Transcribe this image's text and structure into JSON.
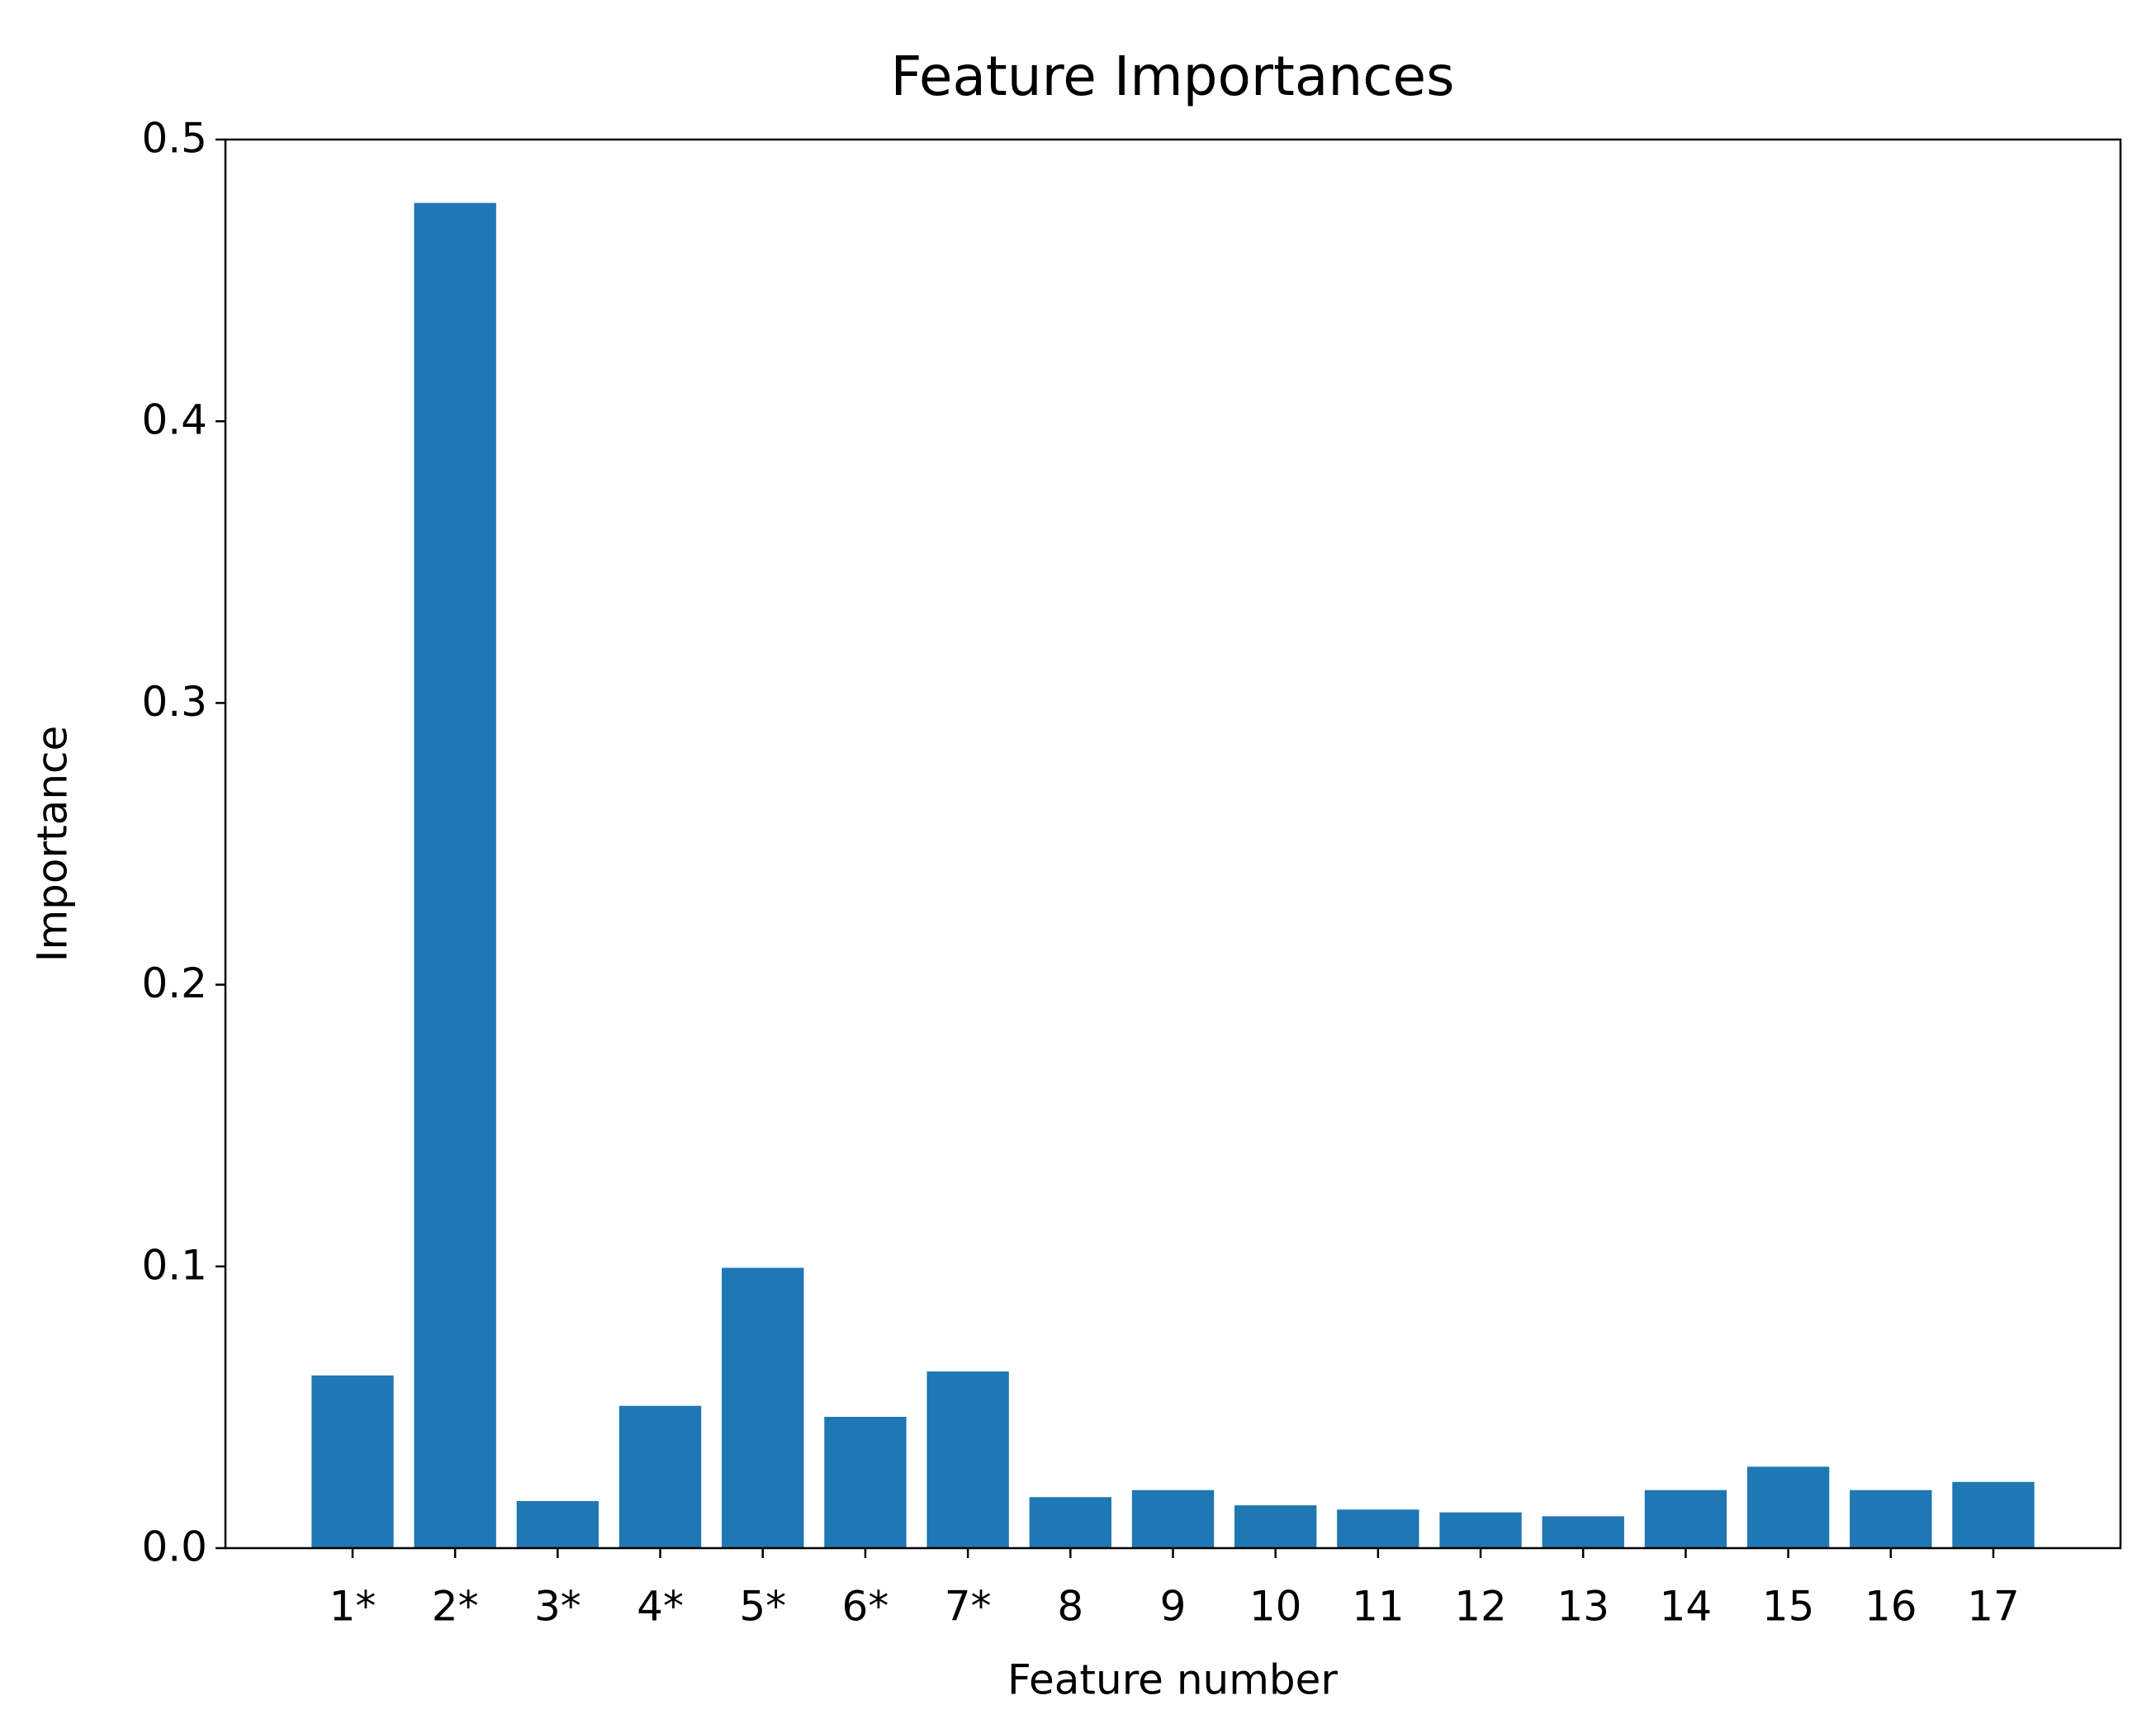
{
  "chart_data": {
    "type": "bar",
    "title": "Feature Importances",
    "x_label": "Feature number",
    "y_label": "Importance",
    "categories": [
      "1*",
      "2*",
      "3*",
      "4*",
      "5*",
      "6*",
      "7*",
      "8",
      "9",
      "10",
      "11",
      "12",
      "13",
      "14",
      "15",
      "16",
      "17"
    ],
    "values": [
      0.0613,
      0.4775,
      0.0167,
      0.0505,
      0.0995,
      0.0466,
      0.0627,
      0.0181,
      0.0206,
      0.0152,
      0.0137,
      0.0127,
      0.0113,
      0.0206,
      0.0289,
      0.0206,
      0.0235
    ],
    "color": "#1f77b4",
    "ylim": [
      0,
      0.5
    ],
    "yticks": [
      {
        "value": 0,
        "label": "0.0"
      },
      0.1,
      0.2,
      0.3,
      0.4,
      0.5
    ],
    "grid": false
  }
}
